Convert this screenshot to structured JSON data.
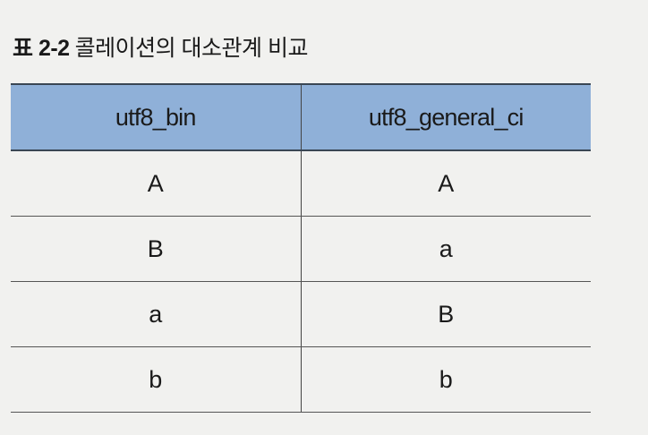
{
  "caption": {
    "label": "표 2-2",
    "title": "콜레이션의 대소관계 비교"
  },
  "table": {
    "columns": [
      "utf8_bin",
      "utf8_general_ci"
    ],
    "rows": [
      [
        "A",
        "A"
      ],
      [
        "B",
        "a"
      ],
      [
        "a",
        "B"
      ],
      [
        "b",
        "b"
      ]
    ]
  },
  "colors": {
    "header_bg": "#8fb0d8",
    "page_bg": "#f1f1ef"
  }
}
